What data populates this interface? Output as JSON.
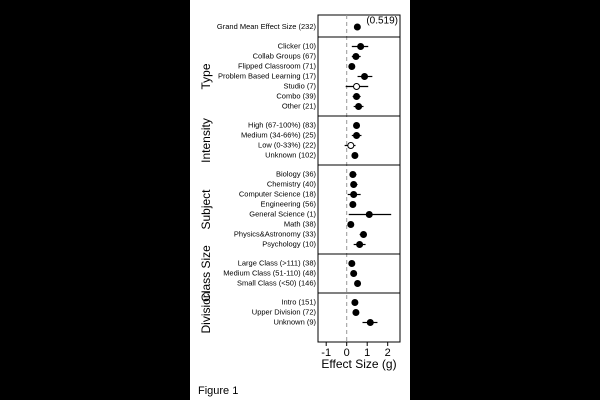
{
  "chart_data": {
    "type": "forest",
    "x_label": "Effect Size (g)",
    "xlim": [
      -1.4,
      2.6
    ],
    "xticks": [
      -1,
      0,
      1,
      2
    ],
    "reference_line": 0,
    "color": "#000000",
    "summary": {
      "label": "Grand Mean Effect Size (232)",
      "value": 0.519,
      "low": 0.519,
      "high": 0.519,
      "value_label": "(0.519)",
      "hollow": false
    },
    "groups": [
      {
        "name": "Type",
        "rows": [
          {
            "label": "Clicker (10)",
            "value": 0.68,
            "low": 0.25,
            "high": 1.05,
            "hollow": false
          },
          {
            "label": "Collab Groups (67)",
            "value": 0.45,
            "low": 0.25,
            "high": 0.68,
            "hollow": false
          },
          {
            "label": "Flipped Classroom (71)",
            "value": 0.25,
            "low": 0.1,
            "high": 0.4,
            "hollow": false
          },
          {
            "label": "Problem Based Learning (17)",
            "value": 0.87,
            "low": 0.53,
            "high": 1.25,
            "hollow": false
          },
          {
            "label": "Studio (7)",
            "value": 0.48,
            "low": -0.05,
            "high": 1.05,
            "hollow": true
          },
          {
            "label": "Combo (39)",
            "value": 0.48,
            "low": 0.29,
            "high": 0.68,
            "hollow": false
          },
          {
            "label": "Other (21)",
            "value": 0.58,
            "low": 0.34,
            "high": 0.82,
            "hollow": false
          }
        ]
      },
      {
        "name": "Intensity",
        "rows": [
          {
            "label": "High (67-100%) (83)",
            "value": 0.48,
            "low": 0.34,
            "high": 0.63,
            "hollow": false
          },
          {
            "label": "Medium (34-66%) (25)",
            "value": 0.48,
            "low": 0.25,
            "high": 0.72,
            "hollow": false
          },
          {
            "label": "Low (0-33%) (22)",
            "value": 0.2,
            "low": -0.1,
            "high": 0.43,
            "hollow": true
          },
          {
            "label": "Unknown (102)",
            "value": 0.4,
            "low": 0.29,
            "high": 0.5,
            "hollow": false
          }
        ]
      },
      {
        "name": "Subject",
        "rows": [
          {
            "label": "Biology (36)",
            "value": 0.3,
            "low": 0.14,
            "high": 0.48,
            "hollow": false
          },
          {
            "label": "Chemistry (40)",
            "value": 0.34,
            "low": 0.19,
            "high": 0.53,
            "hollow": false
          },
          {
            "label": "Computer Science (18)",
            "value": 0.34,
            "low": 0.05,
            "high": 0.68,
            "hollow": false
          },
          {
            "label": "Engineering (56)",
            "value": 0.3,
            "low": 0.14,
            "high": 0.43,
            "hollow": false
          },
          {
            "label": "General Science (1)",
            "value": 1.1,
            "low": 0.1,
            "high": 2.17,
            "hollow": false
          },
          {
            "label": "Math (38)",
            "value": 0.2,
            "low": 0.05,
            "high": 0.34,
            "hollow": false
          },
          {
            "label": "Physics&Astronomy (33)",
            "value": 0.82,
            "low": 0.63,
            "high": 0.97,
            "hollow": false
          },
          {
            "label": "Psychology (10)",
            "value": 0.63,
            "low": 0.34,
            "high": 0.92,
            "hollow": false
          }
        ]
      },
      {
        "name": "Class Size",
        "rows": [
          {
            "label": "Large Class (>111) (38)",
            "value": 0.25,
            "low": 0.1,
            "high": 0.4,
            "hollow": false
          },
          {
            "label": "Medium Class (51-110) (48)",
            "value": 0.34,
            "low": 0.19,
            "high": 0.48,
            "hollow": false
          },
          {
            "label": "Small Class (<50) (146)",
            "value": 0.53,
            "low": 0.43,
            "high": 0.63,
            "hollow": false
          }
        ]
      },
      {
        "name": "Division",
        "rows": [
          {
            "label": "Intro (151)",
            "value": 0.4,
            "low": 0.29,
            "high": 0.5,
            "hollow": false
          },
          {
            "label": "Upper Division (72)",
            "value": 0.45,
            "low": 0.29,
            "high": 0.58,
            "hollow": false
          },
          {
            "label": "Unknown (9)",
            "value": 1.15,
            "low": 0.77,
            "high": 1.5,
            "hollow": false
          }
        ]
      }
    ]
  },
  "caption": "Figure 1"
}
